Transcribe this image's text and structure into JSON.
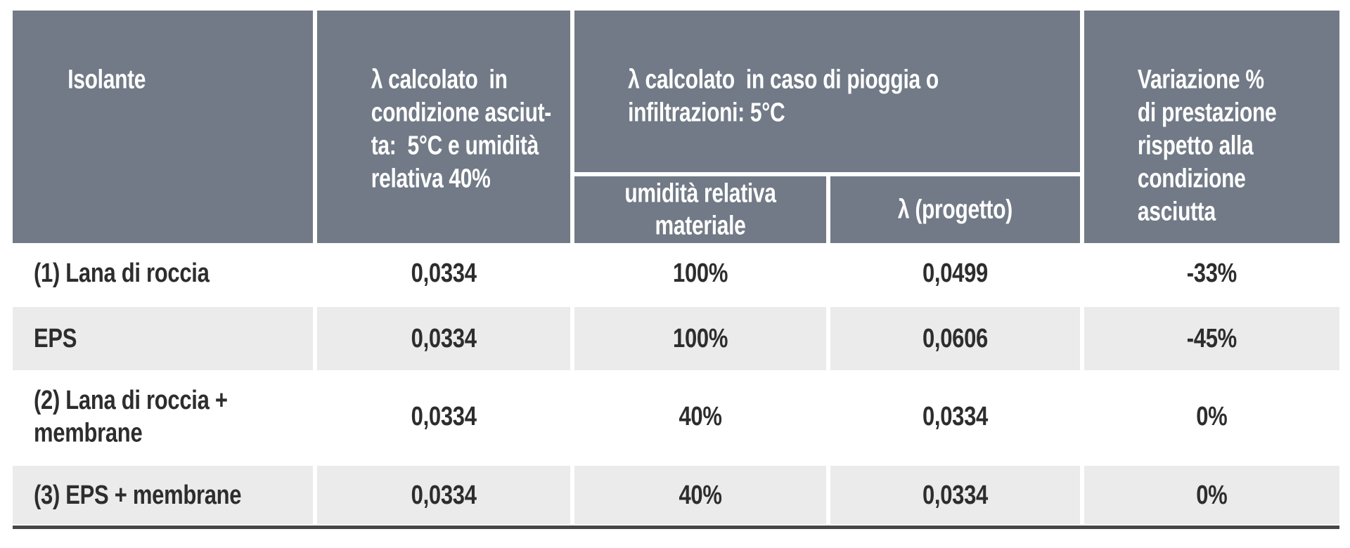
{
  "colors": {
    "header_bg": "#717a86",
    "alt_row_bg": "#ebebeb",
    "row_bg": "#ffffff",
    "header_text": "#ffffff",
    "body_text": "#2d2d2d",
    "bottom_rule": "#474747"
  },
  "header": {
    "isolante": "Isolante",
    "lambda_dry": "λ calcolato  in\ncondizione asciut-\nta:  5°C e umidità\nrelativa 40%",
    "lambda_wet_group": "λ calcolato  in caso di pioggia o\ninfiltrazioni: 5°C",
    "umidita_sub": "umidità relativa\nmateriale",
    "lambda_prog_sub": "λ (progetto)",
    "variazione": "Variazione %\ndi prestazione\nrispetto alla\ncondizione\nasciutta"
  },
  "rows": [
    {
      "cells": [
        "(1) Lana di roccia",
        "0,0334",
        "100%",
        "0,0499",
        "-33%"
      ]
    },
    {
      "cells": [
        "EPS",
        "0,0334",
        "100%",
        "0,0606",
        "-45%"
      ]
    },
    {
      "cells": [
        "(2) Lana di roccia +\nmembrane",
        "0,0334",
        "40%",
        "0,0334",
        "0%"
      ]
    },
    {
      "cells": [
        "(3) EPS + membrane",
        "0,0334",
        "40%",
        "0,0334",
        "0%"
      ]
    }
  ],
  "chart_data": {
    "type": "table",
    "title": "",
    "columns": [
      "Isolante",
      "λ calcolato in condizione asciutta: 5°C e umidità relativa 40%",
      "λ calcolato in caso di pioggia o infiltrazioni: 5°C — umidità relativa materiale",
      "λ calcolato in caso di pioggia o infiltrazioni: 5°C — λ (progetto)",
      "Variazione % di prestazione rispetto alla condizione asciutta"
    ],
    "rows": [
      [
        "(1) Lana di roccia",
        "0,0334",
        "100%",
        "0,0499",
        "-33%"
      ],
      [
        "EPS",
        "0,0334",
        "100%",
        "0,0606",
        "-45%"
      ],
      [
        "(2) Lana di roccia + membrane",
        "0,0334",
        "40%",
        "0,0334",
        "0%"
      ],
      [
        "(3) EPS + membrane",
        "0,0334",
        "40%",
        "0,0334",
        "0%"
      ]
    ]
  }
}
